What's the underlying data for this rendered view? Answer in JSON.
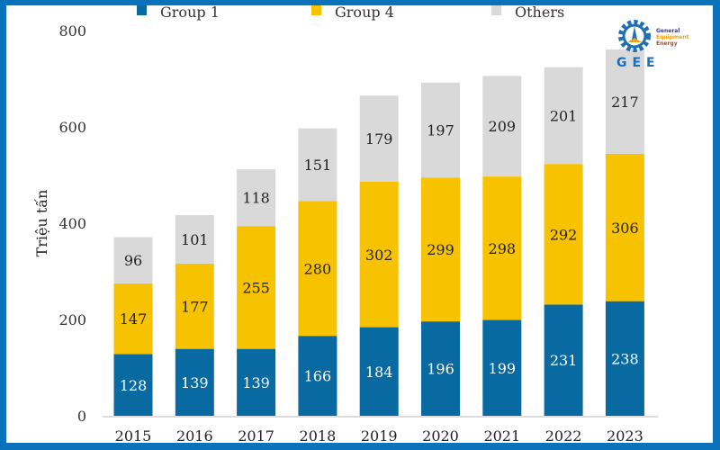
{
  "logo": {
    "letters": "GEE",
    "lines": [
      "General",
      "Equipment",
      "Energy"
    ]
  },
  "chart_data": {
    "type": "bar",
    "stacked": true,
    "title": "",
    "xlabel": "",
    "ylabel": "Triệu tấn",
    "ylim": [
      0,
      800
    ],
    "yticks": [
      0,
      200,
      400,
      600,
      800
    ],
    "grid": false,
    "legend_position": "top",
    "categories": [
      "2015",
      "2016",
      "2017",
      "2018",
      "2019",
      "2020",
      "2021",
      "2022",
      "2023"
    ],
    "series": [
      {
        "name": "Group 1",
        "color": "#086aa0",
        "values": [
          128,
          139,
          139,
          166,
          184,
          196,
          199,
          231,
          238
        ]
      },
      {
        "name": "Group 4",
        "color": "#f7c200",
        "values": [
          147,
          177,
          255,
          280,
          302,
          299,
          298,
          292,
          306
        ]
      },
      {
        "name": "Others",
        "color": "#d9d9d9",
        "values": [
          96,
          101,
          118,
          151,
          179,
          197,
          209,
          201,
          217
        ]
      }
    ]
  }
}
